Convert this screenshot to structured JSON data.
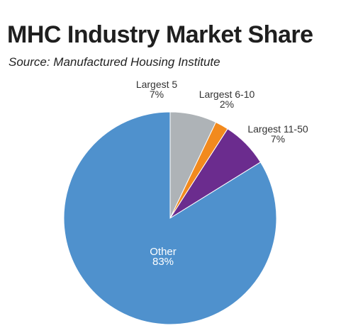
{
  "header": {
    "title": "MHC Industry Market Share",
    "subtitle": "Source: Manufactured Housing Institute"
  },
  "chart_data": {
    "type": "pie",
    "title": "MHC Industry Market Share",
    "subtitle": "Source: Manufactured Housing Institute",
    "slices": [
      {
        "label": "Largest 5",
        "value": 7,
        "display": "7%",
        "color": "#aeb3b7"
      },
      {
        "label": "Largest 6-10",
        "value": 2,
        "display": "2%",
        "color": "#f28a1e"
      },
      {
        "label": "Largest 11-50",
        "value": 7,
        "display": "7%",
        "color": "#6b2c8e"
      },
      {
        "label": "Other",
        "value": 83,
        "display": "83%",
        "color": "#4f91cd"
      }
    ],
    "start_angle": "12 o'clock",
    "direction": "clockwise",
    "legend": "none"
  }
}
